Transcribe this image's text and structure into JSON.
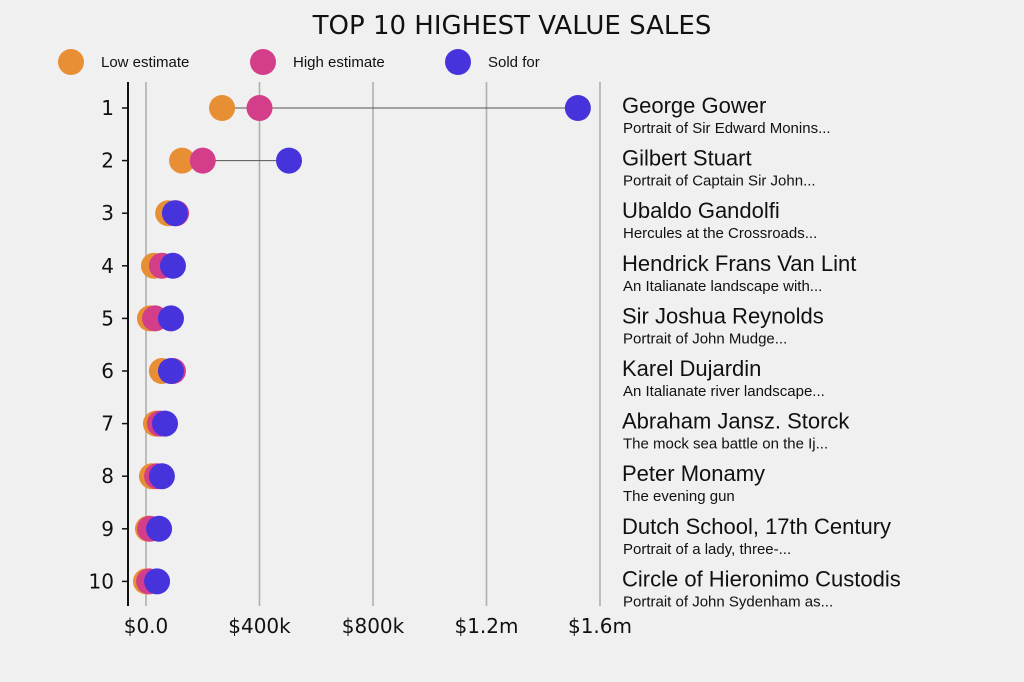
{
  "chart_data": {
    "type": "dot-plot",
    "title": "TOP 10 HIGHEST VALUE SALES",
    "xlabel": "",
    "ylabel": "",
    "xlim": [
      0,
      1600000
    ],
    "grid": true,
    "legend_position": "top-left",
    "x_ticks": [
      {
        "value": 0,
        "label": "$0.0"
      },
      {
        "value": 400000,
        "label": "$400k"
      },
      {
        "value": 800000,
        "label": "$800k"
      },
      {
        "value": 1200000,
        "label": "$1.2m"
      },
      {
        "value": 1600000,
        "label": "$1.6m"
      }
    ],
    "categories": [
      "1",
      "2",
      "3",
      "4",
      "5",
      "6",
      "7",
      "8",
      "9",
      "10"
    ],
    "series": [
      {
        "name": "Low estimate",
        "color": "#e88f35",
        "values": [
          268000,
          127000,
          78000,
          28000,
          14000,
          56000,
          35000,
          21000,
          7000,
          0
        ]
      },
      {
        "name": "High estimate",
        "color": "#d33d89",
        "values": [
          400000,
          200000,
          106000,
          56000,
          32000,
          95000,
          49000,
          39000,
          14000,
          11000
        ]
      },
      {
        "name": "Sold for",
        "color": "#4733dc",
        "values": [
          1522000,
          504000,
          102000,
          95000,
          88000,
          88000,
          67000,
          56000,
          46000,
          39000
        ]
      }
    ],
    "annotations": [
      {
        "artist": "George Gower",
        "work": "Portrait of Sir Edward Monins..."
      },
      {
        "artist": "Gilbert Stuart",
        "work": "Portrait of Captain Sir John..."
      },
      {
        "artist": "Ubaldo Gandolfi",
        "work": "Hercules at the Crossroads..."
      },
      {
        "artist": "Hendrick Frans Van Lint",
        "work": "An Italianate landscape with..."
      },
      {
        "artist": "Sir Joshua Reynolds",
        "work": "Portrait of John Mudge..."
      },
      {
        "artist": "Karel Dujardin",
        "work": "An Italianate river landscape..."
      },
      {
        "artist": "Abraham Jansz. Storck",
        "work": "The mock sea battle on the Ij..."
      },
      {
        "artist": "Peter Monamy",
        "work": "The evening gun"
      },
      {
        "artist": "Dutch School, 17th Century",
        "work": "Portrait of a lady, three-..."
      },
      {
        "artist": "Circle of Hieronimo Custodis",
        "work": "Portrait of John Sydenham as..."
      }
    ]
  },
  "colors": {
    "background": "#f0f0f0",
    "grid": "#b0b0b0",
    "axis": "#111111",
    "connector": "#555555"
  }
}
